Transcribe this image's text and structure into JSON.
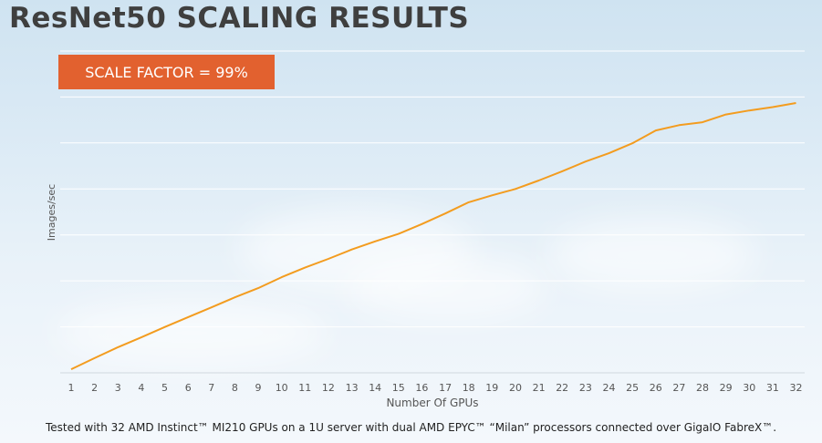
{
  "header": {
    "title": "ResNet50 SCALING RESULTS"
  },
  "badge": {
    "label": "SCALE FACTOR = 99%",
    "color": "#e2612f"
  },
  "footnote": "Tested with 32 AMD Instinct™ MI210 GPUs on a 1U server with dual AMD EPYC™ “Milan” processors connected over GigaIO FabreX™.",
  "chart_data": {
    "type": "line",
    "title": "ResNet50 SCALING RESULTS",
    "xlabel": "Number Of GPUs",
    "ylabel": "Images/sec",
    "x": [
      1,
      2,
      3,
      4,
      5,
      6,
      7,
      8,
      9,
      10,
      11,
      12,
      13,
      14,
      15,
      16,
      17,
      18,
      19,
      20,
      21,
      22,
      23,
      24,
      25,
      26,
      27,
      28,
      29,
      30,
      31,
      32
    ],
    "x_tick_labels": [
      "1",
      "2",
      "3",
      "4",
      "5",
      "6",
      "7",
      "8",
      "9",
      "10",
      "11",
      "12",
      "13",
      "14",
      "15",
      "16",
      "17",
      "18",
      "19",
      "20",
      "21",
      "22",
      "23",
      "24",
      "25",
      "26",
      "27",
      "28",
      "29",
      "30",
      "31",
      "32"
    ],
    "series": [
      {
        "values": [
          0.27,
          1.1,
          1.92,
          2.66,
          3.43,
          4.18,
          4.91,
          5.66,
          6.35,
          7.17,
          7.89,
          8.55,
          9.25,
          9.86,
          10.42,
          11.16,
          11.95,
          12.79,
          13.31,
          13.79,
          14.43,
          15.12,
          15.85,
          16.47,
          17.22,
          18.18,
          18.58,
          18.8,
          19.38,
          19.68,
          19.93,
          20.24
        ],
        "color": "#f39c1f"
      }
    ],
    "ylim": [
      0,
      24
    ],
    "y_gridlines": 7,
    "y_tick_labels_shown": false,
    "grid": true,
    "legend": "none"
  }
}
